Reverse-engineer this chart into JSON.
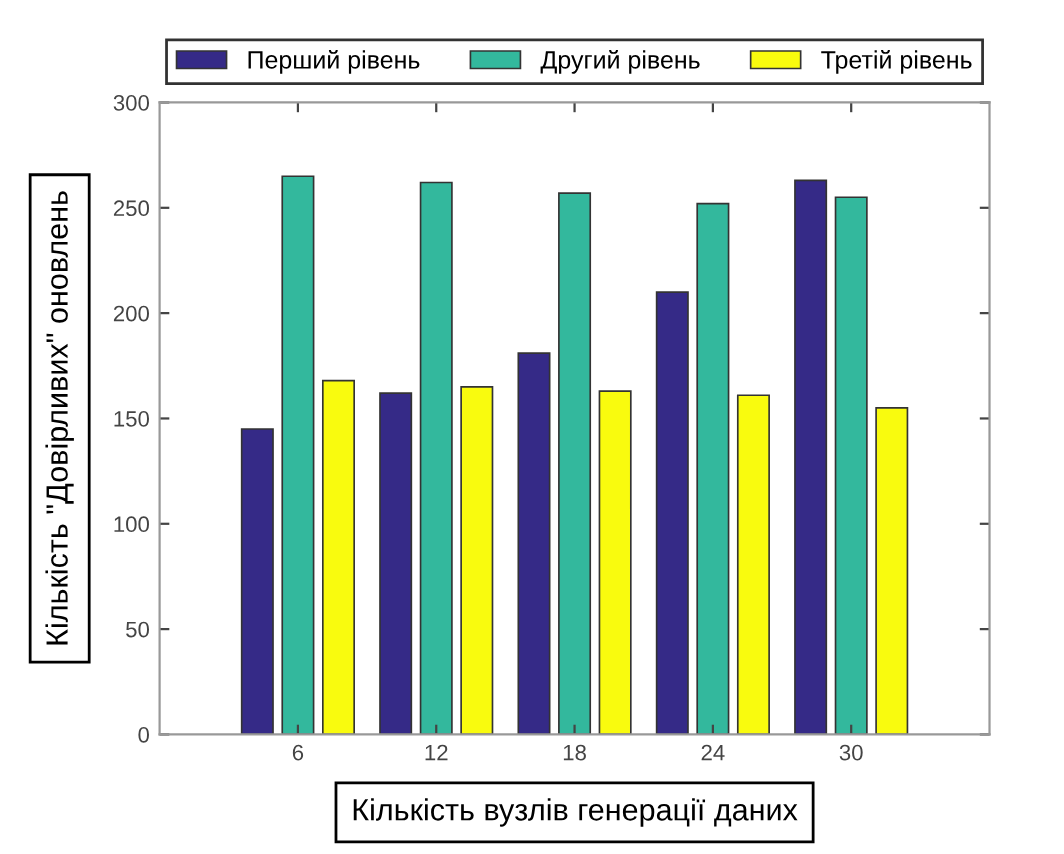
{
  "chart_data": {
    "type": "bar",
    "xlabel": "Кількість вузлів генерації даних",
    "ylabel": "Кількість \"Довірливих\" оновлень",
    "categories": [
      "6",
      "12",
      "18",
      "24",
      "30"
    ],
    "series": [
      {
        "name": "Перший рівень",
        "color": "#352a87",
        "values": [
          145,
          162,
          181,
          210,
          263
        ]
      },
      {
        "name": "Другий рівень",
        "color": "#33b89d",
        "values": [
          265,
          262,
          257,
          252,
          255
        ]
      },
      {
        "name": "Третій рівень",
        "color": "#f9fb0e",
        "values": [
          168,
          165,
          163,
          161,
          155
        ]
      }
    ],
    "ylim": [
      0,
      300
    ],
    "yticks": [
      0,
      50,
      100,
      150,
      200,
      250,
      300
    ],
    "grid": false,
    "legend": "top"
  }
}
